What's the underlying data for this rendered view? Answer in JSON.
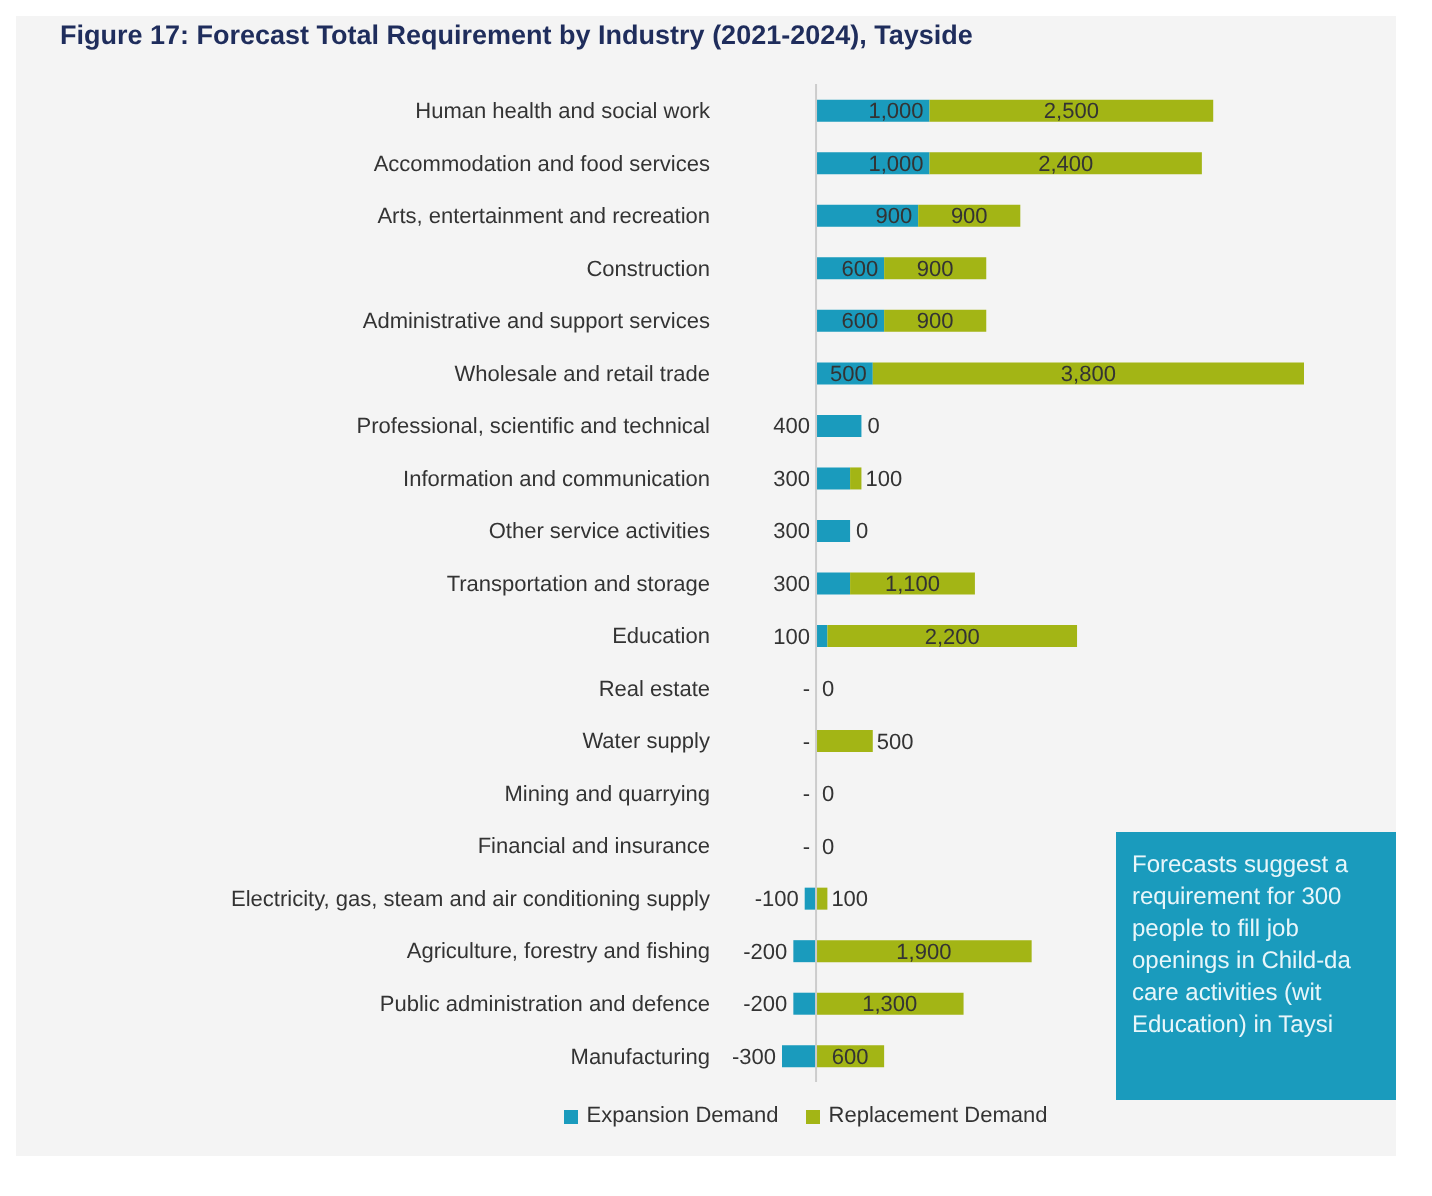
{
  "chart_data": {
    "type": "bar",
    "orientation": "horizontal",
    "stacked": true,
    "title": "Figure 17: Forecast Total Requirement by Industry (2021-2024), Tayside",
    "categories": [
      "Human health and social work",
      "Accommodation and food services",
      "Arts, entertainment and recreation",
      "Construction",
      "Administrative and support services",
      "Wholesale and retail trade",
      "Professional, scientific and technical",
      "Information and communication",
      "Other service activities",
      "Transportation and storage",
      "Education",
      "Real estate",
      "Water supply",
      "Mining and quarrying",
      "Financial and insurance",
      "Electricity, gas, steam and air conditioning supply",
      "Agriculture, forestry and fishing",
      "Public administration and defence",
      "Manufacturing"
    ],
    "series": [
      {
        "name": "Expansion Demand",
        "color": "#1a9bbd",
        "values": [
          1000,
          1000,
          900,
          600,
          600,
          500,
          400,
          300,
          300,
          300,
          100,
          0,
          0,
          0,
          0,
          -100,
          -200,
          -200,
          -300
        ],
        "value_labels": [
          "1,000",
          "1,000",
          "900",
          "600",
          "600",
          "500",
          "400",
          "300",
          "300",
          "300",
          "100",
          "-",
          "-",
          "-",
          "-",
          "-100",
          "-200",
          "-200",
          "-300"
        ]
      },
      {
        "name": "Replacement Demand",
        "color": "#a3b515",
        "values": [
          2500,
          2400,
          900,
          900,
          900,
          3800,
          0,
          100,
          0,
          1100,
          2200,
          0,
          500,
          0,
          0,
          100,
          1900,
          1300,
          600
        ],
        "value_labels": [
          "2,500",
          "2,400",
          "900",
          "900",
          "900",
          "3,800",
          "0",
          "100",
          "0",
          "1,100",
          "2,200",
          "0",
          "500",
          "0",
          "0",
          "100",
          "1,900",
          "1,300",
          "600"
        ]
      }
    ],
    "tick_labels": "y",
    "grid": false,
    "legend": "bottom",
    "ref_lines": [
      {
        "axis": "x",
        "value": 0,
        "color": "#cccccc"
      }
    ],
    "annotations": [
      "Forecasts suggest a requirement for 300 people to fill job openings in Child-da care activities (wit Education) in Taysi"
    ]
  }
}
